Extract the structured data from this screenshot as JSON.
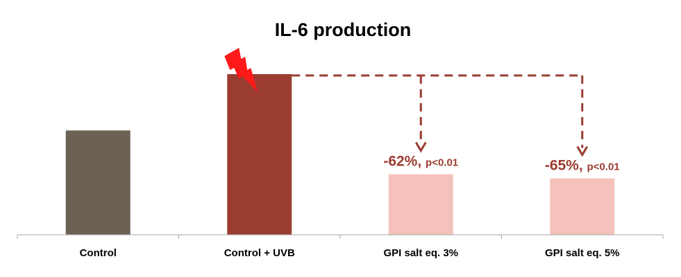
{
  "chart_data": {
    "type": "bar",
    "title": "IL-6 production",
    "xlabel": "",
    "ylabel": "",
    "categories": [
      "Control",
      "Control + UVB",
      "GPI salt eq. 3%",
      "GPI salt eq. 5%"
    ],
    "values": [
      100,
      154,
      58,
      54
    ],
    "ylim": [
      0,
      160
    ],
    "grid": false,
    "colors": [
      "#6b6255",
      "#9b3c30",
      "#f4c2bb",
      "#f4c2bb"
    ],
    "annotations": [
      {
        "category": "GPI salt eq. 3%",
        "change": "-62%,",
        "pvalue": "p<0.01"
      },
      {
        "category": "GPI salt eq. 5%",
        "change": "-65%,",
        "pvalue": "p<0.01"
      }
    ],
    "reference_category": "Control + UVB",
    "accent_color": "#9b3c30",
    "icon": "lightning-bolt-icon"
  }
}
